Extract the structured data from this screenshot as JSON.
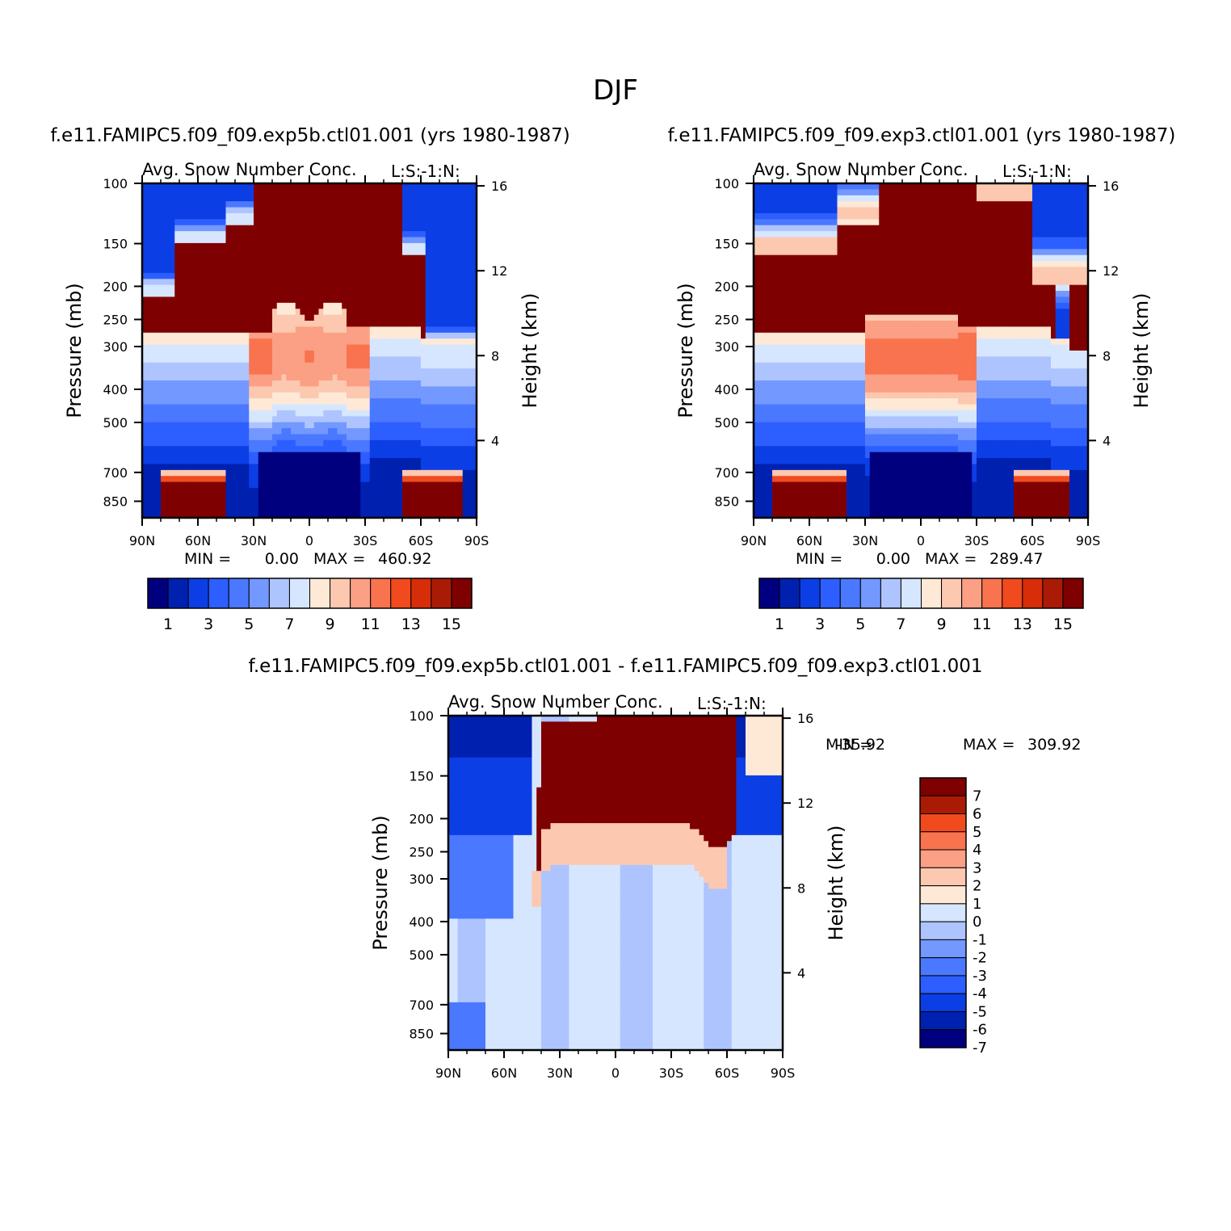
{
  "figure_title": "DJF",
  "colors": {
    "seq": [
      "#00007f",
      "#0021b0",
      "#0c3ee5",
      "#2d5eff",
      "#4a78ff",
      "#7398ff",
      "#aec4ff",
      "#d6e6ff",
      "#fde9d6",
      "#fcc8b0",
      "#fb9f85",
      "#f9734f",
      "#f04a1e",
      "#d72d09",
      "#aa1b05",
      "#7f0000"
    ],
    "div": [
      "#00007f",
      "#0021b0",
      "#0c3ee5",
      "#2d5eff",
      "#4a78ff",
      "#7398ff",
      "#aec4ff",
      "#d6e6ff",
      "#fde9d6",
      "#fcc8b0",
      "#fb9f85",
      "#f9734f",
      "#f04a1e",
      "#aa1b05",
      "#7f0000"
    ]
  },
  "chart_data": [
    {
      "type": "heatmap",
      "case_title": "f.e11.FAMIPC5.f09_f09.exp5b.ctl01.001 (yrs 1980-1987)",
      "title": "Avg. Snow Number Conc.",
      "corner_label": "L:S:-1:N:",
      "ylabel": "Pressure (mb)",
      "ylabel_right": "Height (km)",
      "x_ticks": [
        "90N",
        "60N",
        "30N",
        "0",
        "30S",
        "60S",
        "90S"
      ],
      "y_ticks": [
        "100",
        "150",
        "200",
        "250",
        "300",
        "400",
        "500",
        "700",
        "850"
      ],
      "y_ticks_right": [
        "16",
        "12",
        "8",
        "4"
      ],
      "xlim": [
        90,
        -90
      ],
      "ylim": [
        100,
        950
      ],
      "min_label": "MIN =",
      "min_value": "0.00",
      "max_label": "MAX =",
      "max_value": "460.92",
      "colorbar_labels": [
        "1",
        "3",
        "5",
        "7",
        "9",
        "11",
        "13",
        "15"
      ]
    },
    {
      "type": "heatmap",
      "case_title": "f.e11.FAMIPC5.f09_f09.exp3.ctl01.001 (yrs 1980-1987)",
      "title": "Avg. Snow Number Conc.",
      "corner_label": "L:S:-1:N:",
      "ylabel": "Pressure (mb)",
      "ylabel_right": "Height (km)",
      "x_ticks": [
        "90N",
        "60N",
        "30N",
        "0",
        "30S",
        "60S",
        "90S"
      ],
      "y_ticks": [
        "100",
        "150",
        "200",
        "250",
        "300",
        "400",
        "500",
        "700",
        "850"
      ],
      "y_ticks_right": [
        "16",
        "12",
        "8",
        "4"
      ],
      "xlim": [
        90,
        -90
      ],
      "ylim": [
        100,
        950
      ],
      "min_label": "MIN =",
      "min_value": "0.00",
      "max_label": "MAX =",
      "max_value": "289.47",
      "colorbar_labels": [
        "1",
        "3",
        "5",
        "7",
        "9",
        "11",
        "13",
        "15"
      ]
    },
    {
      "type": "heatmap",
      "case_title": "f.e11.FAMIPC5.f09_f09.exp5b.ctl01.001 - f.e11.FAMIPC5.f09_f09.exp3.ctl01.001",
      "title": "Avg. Snow Number Conc.",
      "corner_label": "L:S:-1:N:",
      "ylabel": "Pressure (mb)",
      "ylabel_right": "Height (km)",
      "x_ticks": [
        "90N",
        "60N",
        "30N",
        "0",
        "30S",
        "60S",
        "90S"
      ],
      "y_ticks": [
        "100",
        "150",
        "200",
        "250",
        "300",
        "400",
        "500",
        "700",
        "850"
      ],
      "y_ticks_right": [
        "16",
        "12",
        "8",
        "4"
      ],
      "xlim": [
        90,
        -90
      ],
      "ylim": [
        100,
        950
      ],
      "min_label": "MIN =",
      "min_value": "-35.92",
      "max_label": "MAX =",
      "max_value": "309.92",
      "colorbar_labels": [
        "7",
        "6",
        "5",
        "4",
        "3",
        "2",
        "1",
        "0",
        "-1",
        "-2",
        "-3",
        "-4",
        "-5",
        "-6",
        "-7"
      ]
    }
  ]
}
